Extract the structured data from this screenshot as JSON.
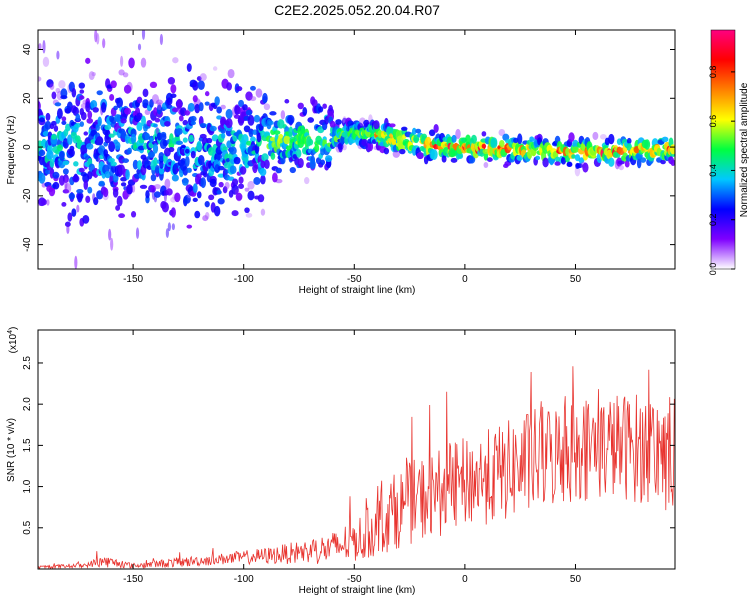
{
  "title": "C2E2.2025.052.20.04.R07",
  "chart_data": [
    {
      "type": "heatmap",
      "xlabel": "Height of straight line (km)",
      "ylabel": "Frequency (Hz)",
      "xlim": [
        -193,
        95
      ],
      "ylim": [
        -50,
        48
      ],
      "x_ticks": [
        -150,
        -100,
        -50,
        0,
        50
      ],
      "y_ticks": [
        -40,
        -20,
        0,
        20,
        40
      ],
      "colorbar": {
        "label": "Normalized spectral amplitude",
        "ticks": [
          0.0,
          0.2,
          0.4,
          0.6,
          0.8
        ],
        "range": [
          0,
          0.97
        ],
        "colors": [
          "#ffffff",
          "#7f00ff",
          "#0000ff",
          "#00c8ff",
          "#00ff40",
          "#ffff00",
          "#ff8000",
          "#ff0000",
          "#ff0080"
        ]
      },
      "ridge": [
        {
          "x": -190,
          "f": 0
        },
        {
          "x": -170,
          "f": 1
        },
        {
          "x": -150,
          "f": 0
        },
        {
          "x": -130,
          "f": 1
        },
        {
          "x": -110,
          "f": 0
        },
        {
          "x": -90,
          "f": 2
        },
        {
          "x": -75,
          "f": 3
        },
        {
          "x": -60,
          "f": 4
        },
        {
          "x": -50,
          "f": 6
        },
        {
          "x": -40,
          "f": 5
        },
        {
          "x": -30,
          "f": 3
        },
        {
          "x": -20,
          "f": 1
        },
        {
          "x": 0,
          "f": 0
        },
        {
          "x": 20,
          "f": -1
        },
        {
          "x": 40,
          "f": -2
        },
        {
          "x": 60,
          "f": -2
        },
        {
          "x": 80,
          "f": -1
        },
        {
          "x": 95,
          "f": -1
        }
      ]
    },
    {
      "type": "line",
      "xlabel": "Height of straight line (km)",
      "ylabel": "SNR (10 * v/v)",
      "y_multiplier": "(x10",
      "y_multiplier_exp": "4",
      "xlim": [
        -193,
        95
      ],
      "ylim": [
        0,
        2.9
      ],
      "x_ticks": [
        -150,
        -100,
        -50,
        0,
        50
      ],
      "y_ticks": [
        0.5,
        1.0,
        1.5,
        2.0,
        2.5
      ],
      "color": "#e8332e",
      "series_envelope": [
        {
          "x": -193,
          "mean": 0.02,
          "spread": 0.02
        },
        {
          "x": -170,
          "mean": 0.05,
          "spread": 0.03
        },
        {
          "x": -165,
          "mean": 0.1,
          "spread": 0.08
        },
        {
          "x": -150,
          "mean": 0.04,
          "spread": 0.03
        },
        {
          "x": -130,
          "mean": 0.08,
          "spread": 0.06
        },
        {
          "x": -110,
          "mean": 0.12,
          "spread": 0.07
        },
        {
          "x": -90,
          "mean": 0.16,
          "spread": 0.1
        },
        {
          "x": -75,
          "mean": 0.2,
          "spread": 0.14
        },
        {
          "x": -60,
          "mean": 0.25,
          "spread": 0.2
        },
        {
          "x": -45,
          "mean": 0.4,
          "spread": 0.3
        },
        {
          "x": -35,
          "mean": 0.65,
          "spread": 0.45
        },
        {
          "x": -25,
          "mean": 0.8,
          "spread": 0.5
        },
        {
          "x": -10,
          "mean": 0.95,
          "spread": 0.55
        },
        {
          "x": 0,
          "mean": 1.05,
          "spread": 0.55
        },
        {
          "x": 15,
          "mean": 1.15,
          "spread": 0.6
        },
        {
          "x": 30,
          "mean": 1.3,
          "spread": 0.65
        },
        {
          "x": 50,
          "mean": 1.45,
          "spread": 0.65
        },
        {
          "x": 70,
          "mean": 1.5,
          "spread": 0.65
        },
        {
          "x": 85,
          "mean": 1.45,
          "spread": 0.7
        },
        {
          "x": 95,
          "mean": 1.4,
          "spread": 0.8
        }
      ]
    }
  ]
}
